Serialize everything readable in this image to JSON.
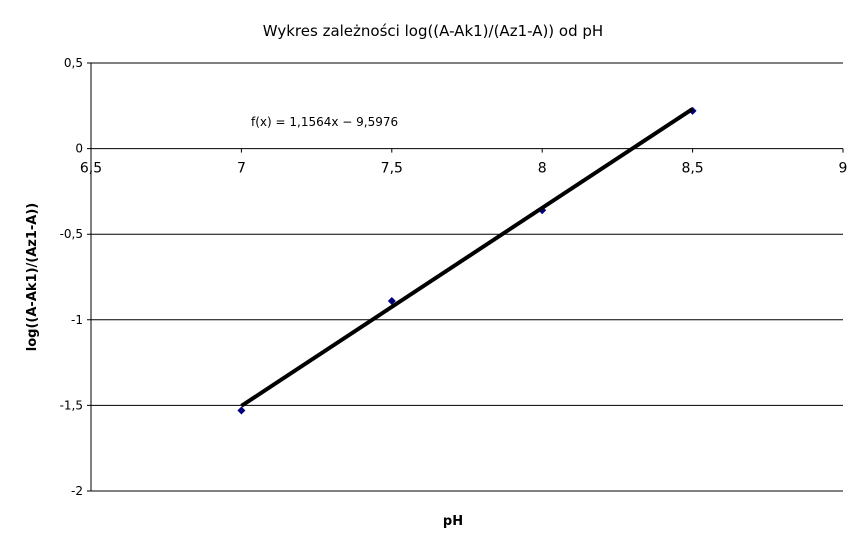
{
  "chart_data": {
    "type": "scatter",
    "title": "Wykres zależności log((A-Ak1)/(Az1-A)) od pH",
    "xlabel": "pH",
    "ylabel": "log((A-Ak1)/(Az1-A))",
    "xlim": [
      6.5,
      9
    ],
    "ylim": [
      -2,
      0.5
    ],
    "xticks": [
      6.5,
      7,
      7.5,
      8,
      8.5,
      9
    ],
    "xtick_labels": [
      "6,5",
      "7",
      "7,5",
      "8",
      "8,5",
      "9"
    ],
    "yticks": [
      0.5,
      0,
      -0.5,
      -1,
      -1.5,
      -2
    ],
    "ytick_labels": [
      "0,5",
      "0",
      "-0,5",
      "-1",
      "-1,5",
      "-2"
    ],
    "grid": "horizontal",
    "points": {
      "x": [
        7,
        7.5,
        8,
        8.5
      ],
      "y": [
        -1.53,
        -0.89,
        -0.36,
        0.22
      ]
    },
    "point_color": "#000080",
    "trendline": {
      "slope": 1.1564,
      "intercept": -9.5976,
      "label": "f(x) = 1,1564x − 9,5976",
      "color": "#000000"
    }
  }
}
